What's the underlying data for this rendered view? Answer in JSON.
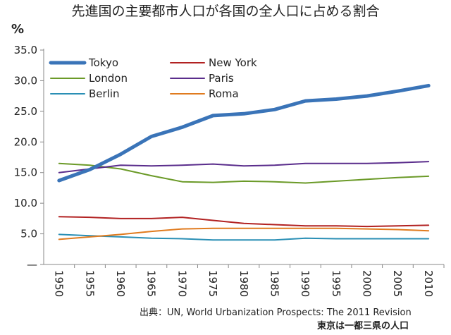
{
  "title": "先進国の主要都市人口が各国の全人口に占める割合",
  "chart_data": {
    "type": "line",
    "title": "先進国の主要都市人口が各国の全人口に占める割合",
    "ylabel": "%",
    "xlabel": "",
    "x": [
      "1950",
      "1955",
      "1960",
      "1965",
      "1970",
      "1975",
      "1980",
      "1985",
      "1990",
      "1995",
      "2000",
      "2005",
      "2010"
    ],
    "yticks": [
      "—",
      "5.0",
      "10.0",
      "15.0",
      "20.0",
      "25.0",
      "30.0",
      "35.0"
    ],
    "ylim": [
      0,
      35
    ],
    "grid": false,
    "legend_position": "top-left",
    "series": [
      {
        "name": "Tokyo",
        "color": "#3a74b8",
        "width": 5,
        "values": [
          13.7,
          15.5,
          18.0,
          20.9,
          22.4,
          24.3,
          24.6,
          25.3,
          26.7,
          27.0,
          27.5,
          28.3,
          29.2
        ]
      },
      {
        "name": "New York",
        "color": "#b22222",
        "width": 2,
        "values": [
          7.8,
          7.7,
          7.5,
          7.5,
          7.7,
          7.2,
          6.7,
          6.5,
          6.3,
          6.3,
          6.2,
          6.3,
          6.4
        ]
      },
      {
        "name": "London",
        "color": "#6b9a28",
        "width": 2,
        "values": [
          16.5,
          16.2,
          15.6,
          14.5,
          13.5,
          13.4,
          13.6,
          13.5,
          13.3,
          13.6,
          13.9,
          14.2,
          14.4
        ]
      },
      {
        "name": "Paris",
        "color": "#5a2d8c",
        "width": 2,
        "values": [
          15.0,
          15.6,
          16.2,
          16.1,
          16.2,
          16.4,
          16.1,
          16.2,
          16.5,
          16.5,
          16.5,
          16.6,
          16.8
        ]
      },
      {
        "name": "Berlin",
        "color": "#2a8fb5",
        "width": 2,
        "values": [
          4.9,
          4.7,
          4.5,
          4.3,
          4.2,
          4.0,
          4.0,
          4.0,
          4.3,
          4.2,
          4.2,
          4.2,
          4.2
        ]
      },
      {
        "name": "Roma",
        "color": "#e07b1f",
        "width": 2,
        "values": [
          4.1,
          4.5,
          4.9,
          5.4,
          5.8,
          5.9,
          5.9,
          5.9,
          5.9,
          5.9,
          5.8,
          5.7,
          5.5
        ]
      }
    ]
  },
  "source": "出典：UN, World Urbanization Prospects: The 2011 Revision",
  "note": "東京は一都三県の人口"
}
